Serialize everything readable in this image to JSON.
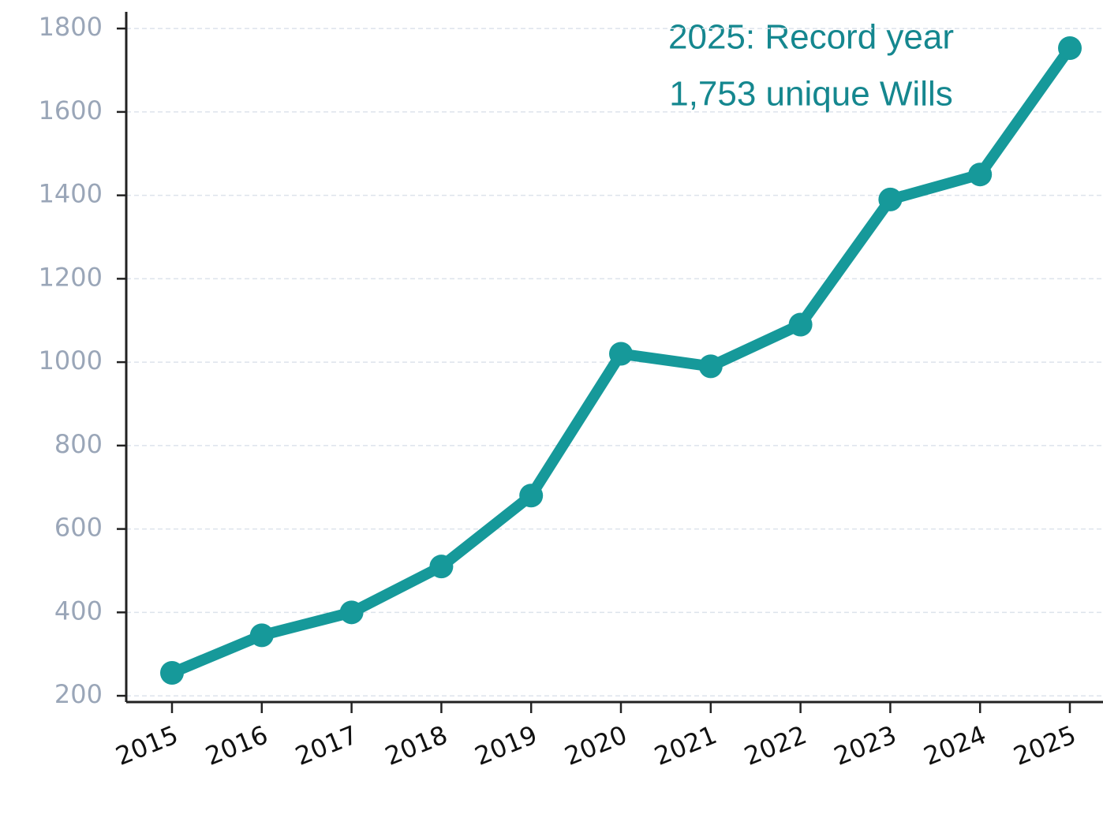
{
  "chart_data": {
    "type": "line",
    "categories": [
      "2015",
      "2016",
      "2017",
      "2018",
      "2019",
      "2020",
      "2021",
      "2022",
      "2023",
      "2024",
      "2025"
    ],
    "series": [
      {
        "name": "Unique Wills",
        "color": "#16999a",
        "values": [
          255,
          345,
          400,
          510,
          680,
          1020,
          990,
          1090,
          1390,
          1450,
          1753
        ]
      }
    ],
    "ylim": [
      185,
      1840
    ],
    "yticks": [
      200,
      400,
      600,
      800,
      1000,
      1200,
      1400,
      1600,
      1800
    ],
    "grid": true,
    "annotation": [
      "2025: Record year",
      "1,753 unique Wills"
    ]
  }
}
